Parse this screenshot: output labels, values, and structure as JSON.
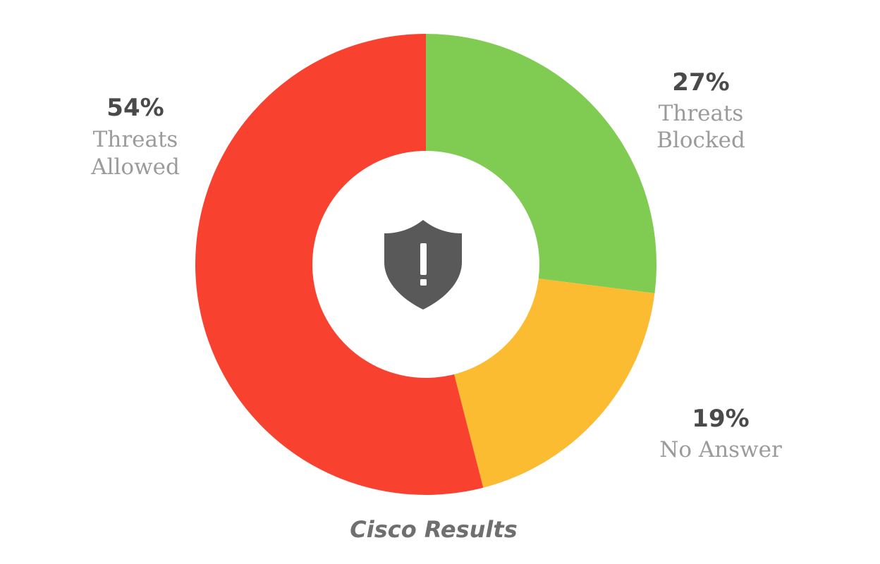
{
  "chart_data": {
    "type": "pie",
    "title": "Cisco Results",
    "slices": [
      {
        "name": "Threats Blocked",
        "label_lines": [
          "Threats",
          "Blocked"
        ],
        "value": 27,
        "value_label": "27%",
        "color": "#80cc53"
      },
      {
        "name": "No Answer",
        "label_lines": [
          "No Answer"
        ],
        "value": 19,
        "value_label": "19%",
        "color": "#fcbc32"
      },
      {
        "name": "Threats Allowed",
        "label_lines": [
          "Threats",
          "Allowed"
        ],
        "value": 54,
        "value_label": "54%",
        "color": "#f9412f"
      }
    ],
    "center_icon": "shield-alert-icon",
    "center_icon_color": "#595959"
  }
}
